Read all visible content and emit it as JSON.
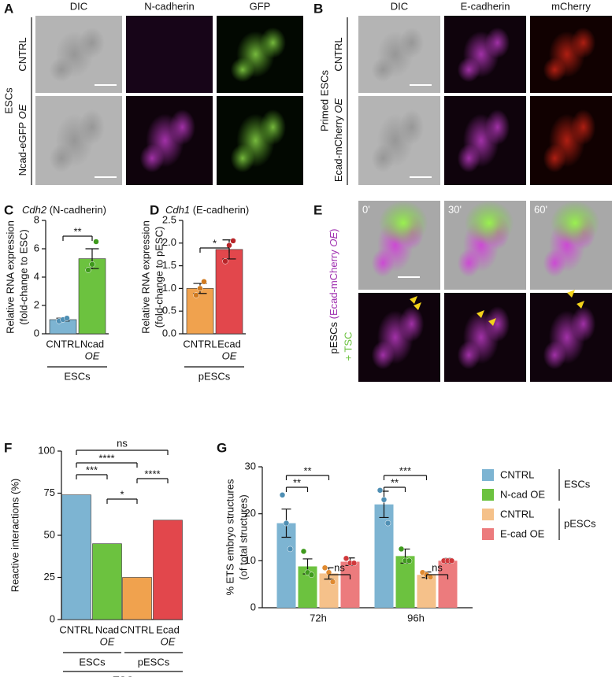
{
  "panel_letters": [
    "A",
    "B",
    "C",
    "D",
    "E",
    "F",
    "G"
  ],
  "panel_a": {
    "columns": [
      "DIC",
      "N-cadherin",
      "GFP"
    ],
    "rows": [
      {
        "text": "CNTRL"
      },
      {
        "text": "Ncad-eGFP",
        "italic": "OE"
      }
    ],
    "group": "ESCs"
  },
  "panel_b": {
    "columns": [
      "DIC",
      "E-cadherin",
      "mCherry"
    ],
    "rows": [
      {
        "text": "CNTRL"
      },
      {
        "text": "Ecad-mCherry",
        "italic": "OE"
      }
    ],
    "group": "Primed ESCs"
  },
  "panel_e": {
    "times": [
      "0'",
      "30'",
      "60'"
    ],
    "cells": "pESCs",
    "construct": "(Ecad-mCherry",
    "italic": "OE",
    "close": ")",
    "coculture": "+ TSC"
  },
  "chart_data": [
    {
      "type": "bar",
      "title_gene": "Cdh2",
      "title": "(N-cadherin)",
      "y_label": [
        "Relative RNA expression",
        "(fold-change to ESC)"
      ],
      "categories": [
        [
          "CNTRL"
        ],
        [
          "Ncad",
          "OE"
        ]
      ],
      "values": [
        1.0,
        5.3
      ],
      "errors": [
        0.1,
        0.7
      ],
      "points": [
        [
          0.9,
          1.0,
          1.1
        ],
        [
          4.5,
          4.9,
          6.5
        ]
      ],
      "colors": [
        "#7db4d2",
        "#6cc23f"
      ],
      "ylim": [
        0,
        8
      ],
      "yticks": [
        0,
        2,
        4,
        6,
        8
      ],
      "groups": [
        "ESCs"
      ],
      "significance": [
        "**"
      ]
    },
    {
      "type": "bar",
      "title_gene": "Cdh1",
      "title": "(E-cadherin)",
      "y_label": [
        "Relative RNA expression",
        "(fold-change to pESC)"
      ],
      "categories": [
        [
          "CNTRL"
        ],
        [
          "Ecad",
          "OE"
        ]
      ],
      "values": [
        1.0,
        1.86
      ],
      "errors": [
        0.11,
        0.21
      ],
      "points": [
        [
          0.85,
          1.0,
          1.15
        ],
        [
          1.6,
          1.95,
          2.05
        ]
      ],
      "colors": [
        "#f0a24e",
        "#e2474c"
      ],
      "ylim": [
        0,
        2.5
      ],
      "yticks": [
        {
          "value": 0,
          "label": "0.0"
        },
        {
          "value": 0.5,
          "label": "0.5"
        },
        {
          "value": 1,
          "label": "1.0"
        },
        {
          "value": 1.5,
          "label": "1.5"
        },
        {
          "value": 2,
          "label": "2.0"
        },
        {
          "value": 2.5,
          "label": "2.5"
        }
      ],
      "groups": [
        "pESCs"
      ],
      "significance": [
        "*"
      ]
    },
    {
      "type": "bar",
      "y_label": [
        "Reactive interactions (%)"
      ],
      "categories": [
        [
          "CNTRL"
        ],
        [
          "Ncad",
          "OE"
        ],
        [
          "CNTRL"
        ],
        [
          "Ecad",
          "OE"
        ]
      ],
      "values": [
        74,
        45,
        25,
        59
      ],
      "colors": [
        "#7db4d2",
        "#6cc23f",
        "#f0a24e",
        "#e2474c"
      ],
      "ylim": [
        0,
        100
      ],
      "yticks": [
        0,
        25,
        50,
        75,
        100
      ],
      "groups": [
        "ESCs",
        "pESCs"
      ],
      "footer": "+TSCs",
      "significance": [
        "ns",
        "****",
        "***",
        "*",
        "****"
      ]
    },
    {
      "type": "grouped_bar",
      "y_label": [
        "% ETS embryo structures",
        "(of total structures)"
      ],
      "categories": [
        "72h",
        "96h"
      ],
      "series": [
        {
          "name": "CNTRL",
          "color": "#7db4d2",
          "values": [
            18,
            22
          ],
          "errors": [
            3,
            2.8
          ],
          "points": [
            [
              24,
              18,
              12.5
            ],
            [
              25,
              23,
              18
            ]
          ]
        },
        {
          "name": "N-cad OE",
          "color": "#6cc23f",
          "values": [
            8.8,
            11
          ],
          "errors": [
            1.6,
            1.5
          ],
          "points": [
            [
              12,
              7.5,
              7
            ],
            [
              12.5,
              10,
              10
            ]
          ]
        },
        {
          "name": "CNTRL",
          "color": "#f5c18a",
          "values": [
            7.3,
            7.0
          ],
          "errors": [
            1.2,
            0.6
          ],
          "points": [
            [
              8.5,
              7.5,
              5.5
            ],
            [
              7.5,
              7,
              6.5
            ]
          ]
        },
        {
          "name": "E-cad OE",
          "color": "#ec7b7d",
          "values": [
            9.8,
            10.0
          ],
          "errors": [
            0.8,
            0.5
          ],
          "points": [
            [
              10.5,
              9.5,
              9.5
            ],
            [
              10,
              10,
              10
            ]
          ]
        }
      ],
      "legend_groups": [
        "ESCs",
        "pESCs"
      ],
      "ylim": [
        0,
        30
      ],
      "yticks": [
        0,
        10,
        20,
        30
      ],
      "significance": [
        "**",
        "**",
        "ns",
        "***",
        "**",
        "ns"
      ]
    }
  ]
}
